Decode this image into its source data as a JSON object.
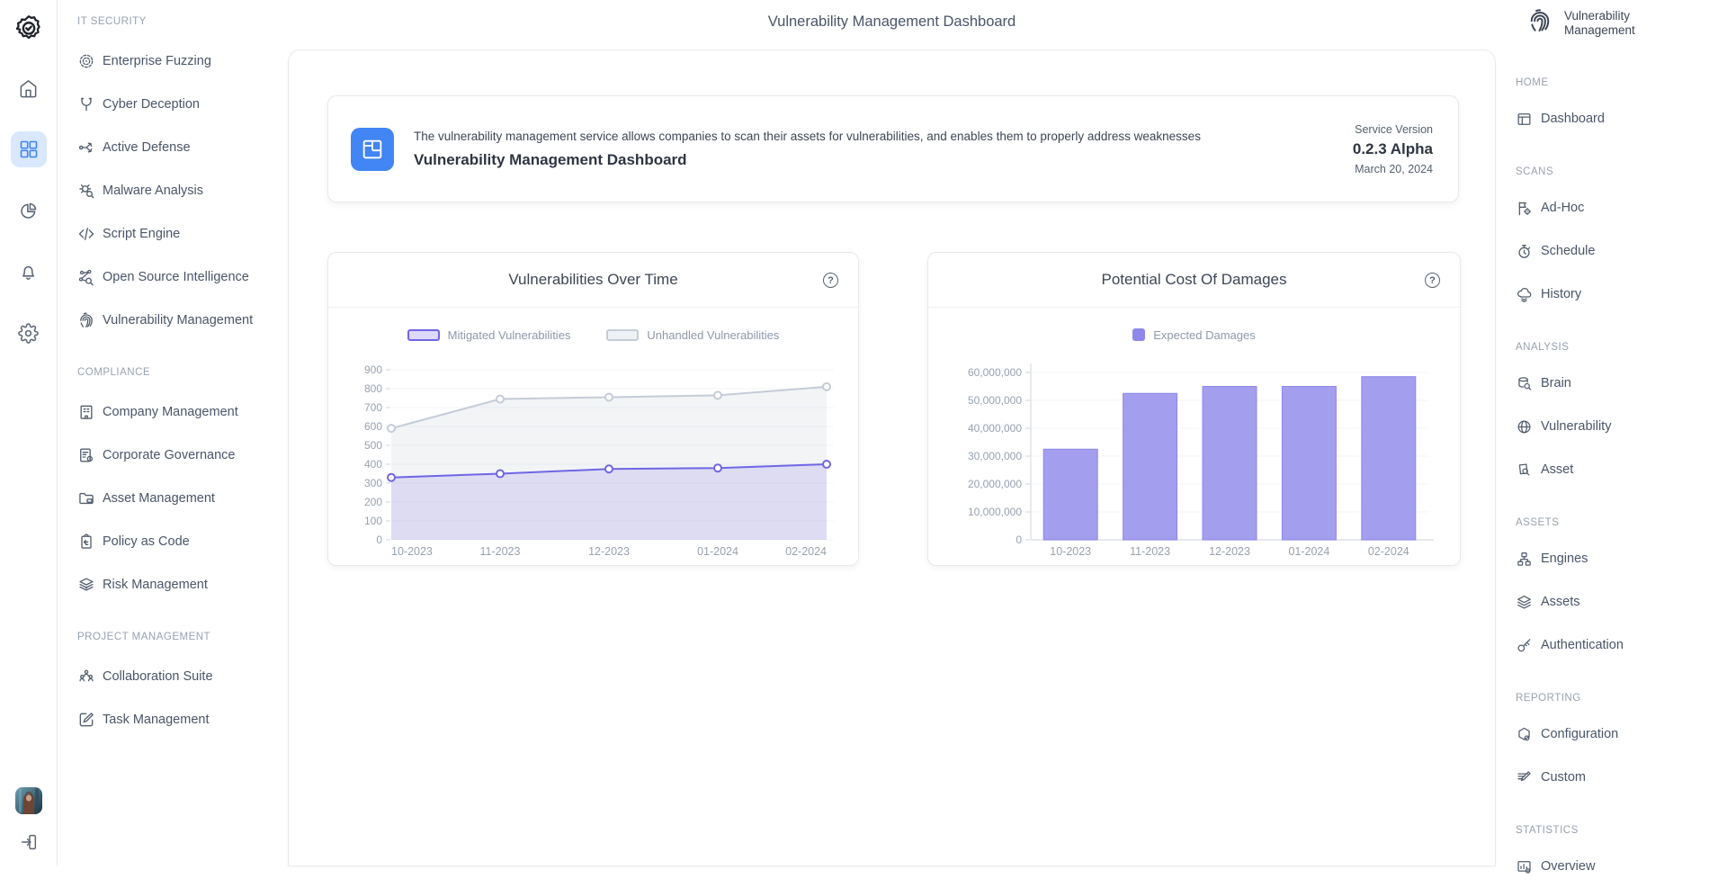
{
  "page_title": "Vulnerability Management Dashboard",
  "left_rail": {
    "logo_icon": "shield-check-icon",
    "items": [
      {
        "icon": "home",
        "active": false
      },
      {
        "icon": "grid",
        "active": true
      },
      {
        "icon": "pie",
        "active": false
      },
      {
        "icon": "bell",
        "active": false
      },
      {
        "icon": "gear",
        "active": false
      }
    ],
    "avatar_icon": "user-photo",
    "signout_icon": "sign-out"
  },
  "left_sidebar": {
    "sections": [
      {
        "title": "IT SECURITY",
        "items": [
          {
            "label": "Enterprise Fuzzing",
            "icon": "target"
          },
          {
            "label": "Cyber Deception",
            "icon": "branch"
          },
          {
            "label": "Active Defense",
            "icon": "share"
          },
          {
            "label": "Malware Analysis",
            "icon": "bug-search"
          },
          {
            "label": "Script Engine",
            "icon": "code"
          },
          {
            "label": "Open Source Intelligence",
            "icon": "network-search"
          },
          {
            "label": "Vulnerability Management",
            "icon": "fingerprint"
          }
        ]
      },
      {
        "title": "COMPLIANCE",
        "items": [
          {
            "label": "Company Management",
            "icon": "building"
          },
          {
            "label": "Corporate Governance",
            "icon": "doc-gear"
          },
          {
            "label": "Asset Management",
            "icon": "folder"
          },
          {
            "label": "Policy as Code",
            "icon": "clipboard-arrow"
          },
          {
            "label": "Risk Management",
            "icon": "layers-eye"
          }
        ]
      },
      {
        "title": "PROJECT MANAGEMENT",
        "items": [
          {
            "label": "Collaboration Suite",
            "icon": "people"
          },
          {
            "label": "Task Management",
            "icon": "edit-square"
          }
        ]
      }
    ]
  },
  "header_card": {
    "description": "The vulnerability management service allows companies to scan their assets for vulnerabilities, and enables them to properly address weaknesses",
    "title": "Vulnerability Management Dashboard",
    "icon": "dashboard-tile-icon",
    "service_version_label": "Service Version",
    "version": "0.2.3 Alpha",
    "date": "March 20, 2024"
  },
  "icons": {
    "help_glyph": "?"
  },
  "chart_data": [
    {
      "type": "line",
      "title": "Vulnerabilities Over Time",
      "x": [
        "10-2023",
        "11-2023",
        "12-2023",
        "01-2024",
        "02-2024"
      ],
      "series": [
        {
          "name": "Mitigated Vulnerabilities",
          "values": [
            330,
            350,
            375,
            380,
            400
          ],
          "color": "#6f66e4",
          "fill": "rgba(111,102,228,0.16)",
          "chip_fill": "#dcd9fa"
        },
        {
          "name": "Unhandled Vulnerabilities",
          "values": [
            590,
            745,
            755,
            765,
            810
          ],
          "color": "#c5ccd8",
          "fill": "rgba(197,204,216,0.22)",
          "chip_fill": "#eef1f6"
        }
      ],
      "ylim": [
        0,
        900
      ],
      "ytick_step": 100,
      "grid": true,
      "legend_position": "top"
    },
    {
      "type": "bar",
      "title": "Potential Cost Of Damages",
      "categories": [
        "10-2023",
        "11-2023",
        "12-2023",
        "01-2024",
        "02-2024"
      ],
      "series": [
        {
          "name": "Expected Damages",
          "values": [
            32500000,
            52500000,
            55000000,
            55000000,
            58500000
          ],
          "color": "#a39eee",
          "border": "#8d88ea"
        }
      ],
      "ylim": [
        0,
        60000000
      ],
      "ytick_step": 10000000,
      "grid": true,
      "legend_position": "top"
    }
  ],
  "right_sidebar": {
    "title": "Vulnerability Management",
    "header_icon": "fingerprint-icon",
    "sections": [
      {
        "title": "HOME",
        "items": [
          {
            "label": "Dashboard",
            "icon": "window"
          }
        ]
      },
      {
        "title": "SCANS",
        "items": [
          {
            "label": "Ad-Hoc",
            "icon": "flag-target"
          },
          {
            "label": "Schedule",
            "icon": "stopwatch"
          },
          {
            "label": "History",
            "icon": "cloud-layers"
          }
        ]
      },
      {
        "title": "ANALYSIS",
        "items": [
          {
            "label": "Brain",
            "icon": "db-search"
          },
          {
            "label": "Vulnerability",
            "icon": "globe"
          },
          {
            "label": "Asset",
            "icon": "page-search"
          }
        ]
      },
      {
        "title": "ASSETS",
        "items": [
          {
            "label": "Engines",
            "icon": "hierarchy"
          },
          {
            "label": "Assets",
            "icon": "layers"
          },
          {
            "label": "Authentication",
            "icon": "key"
          }
        ]
      },
      {
        "title": "REPORTING",
        "items": [
          {
            "label": "Configuration",
            "icon": "hex-gear"
          },
          {
            "label": "Custom",
            "icon": "pen-lines"
          }
        ]
      },
      {
        "title": "STATISTICS",
        "items": [
          {
            "label": "Overview",
            "icon": "chart-gear"
          }
        ]
      }
    ]
  },
  "colors": {
    "accent_blue": "#4285f4",
    "accent_blue_bg": "#d9e8fd",
    "purple_line": "#6f66e4",
    "purple_bar": "#a39eee",
    "gray_line": "#c5ccd8",
    "grid_line": "#f3f5f8",
    "axis_line": "#dde2e9",
    "text_dark": "#3d4654",
    "text_muted": "#98a1b0"
  }
}
